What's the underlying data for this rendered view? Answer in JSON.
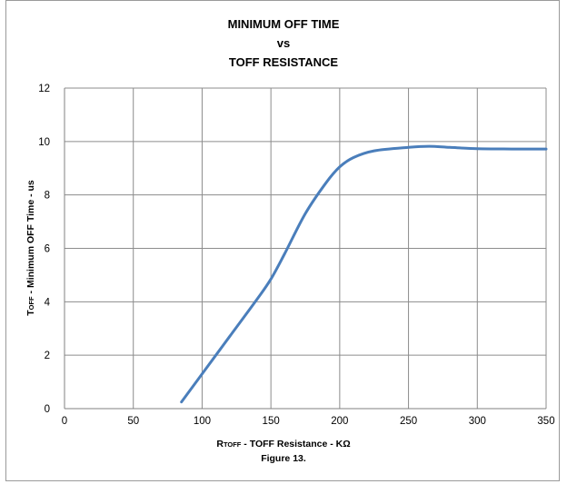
{
  "title_lines": [
    "MINIMUM OFF TIME",
    "vs",
    "TOFF RESISTANCE"
  ],
  "ylabel": {
    "main": "T",
    "sub": "OFF",
    "rest": " - Minimum  OFF Time  - us"
  },
  "xlabel": {
    "main": "R",
    "sub": "TOFF",
    "rest": " - TOFF Resistance  - KΩ"
  },
  "caption": "Figure 13.",
  "chart_data": {
    "type": "line",
    "title": "MINIMUM OFF TIME vs TOFF RESISTANCE",
    "xlabel": "RTOFF - TOFF Resistance - KΩ",
    "ylabel": "TOFF - Minimum OFF Time - us",
    "xlim": [
      0,
      350
    ],
    "ylim": [
      0,
      12
    ],
    "xticks": [
      0,
      50,
      100,
      150,
      200,
      250,
      300,
      350
    ],
    "yticks": [
      0,
      2,
      4,
      6,
      8,
      10,
      12
    ],
    "grid": true,
    "series": [
      {
        "color": "#4a7ebb",
        "x": [
          85,
          100,
          120,
          140,
          150,
          160,
          175,
          190,
          200,
          210,
          225,
          250,
          265,
          280,
          300,
          325,
          350
        ],
        "y": [
          0.25,
          1.3,
          2.7,
          4.1,
          4.85,
          5.8,
          7.3,
          8.45,
          9.05,
          9.4,
          9.65,
          9.78,
          9.82,
          9.78,
          9.73,
          9.72,
          9.72
        ]
      }
    ]
  }
}
